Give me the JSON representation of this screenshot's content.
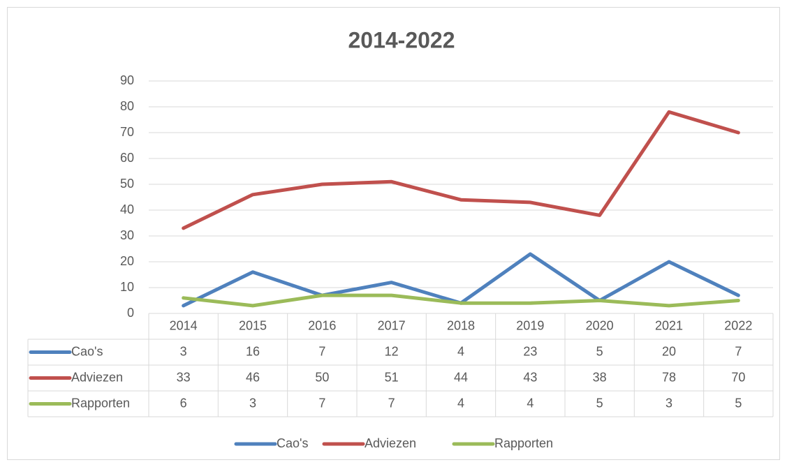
{
  "chart_data": {
    "type": "line",
    "title": "2014-2022",
    "categories": [
      "2014",
      "2015",
      "2016",
      "2017",
      "2018",
      "2019",
      "2020",
      "2021",
      "2022"
    ],
    "series": [
      {
        "name": "Cao's",
        "color": "#4f81bd",
        "values": [
          3,
          16,
          7,
          12,
          4,
          23,
          5,
          20,
          7
        ]
      },
      {
        "name": "Adviezen",
        "color": "#c0504d",
        "values": [
          33,
          46,
          50,
          51,
          44,
          43,
          38,
          78,
          70
        ]
      },
      {
        "name": "Rapporten",
        "color": "#9bbb59",
        "values": [
          6,
          3,
          7,
          7,
          4,
          4,
          5,
          3,
          5
        ]
      }
    ],
    "ylim": [
      0,
      90
    ],
    "yticks": [
      0,
      10,
      20,
      30,
      40,
      50,
      60,
      70,
      80,
      90
    ],
    "grid": true,
    "legend": "bottom"
  }
}
